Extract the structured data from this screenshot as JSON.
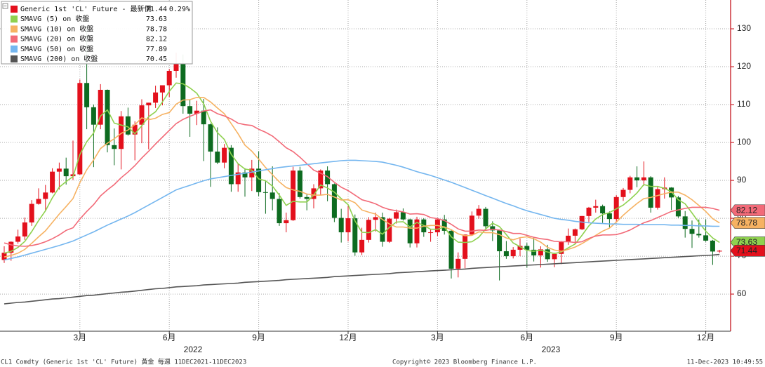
{
  "chart_data": {
    "type": "candlestick",
    "categories": [
      null,
      null,
      null,
      null,
      null,
      null,
      null,
      null,
      null,
      null,
      null,
      "3月",
      null,
      null,
      null,
      null,
      null,
      null,
      null,
      null,
      null,
      null,
      null,
      null,
      "6月",
      null,
      null,
      null,
      null,
      null,
      null,
      null,
      null,
      null,
      null,
      null,
      null,
      "9月",
      null,
      null,
      null,
      null,
      null,
      null,
      null,
      null,
      null,
      null,
      null,
      null,
      "12月",
      null,
      null,
      null,
      null,
      null,
      null,
      null,
      null,
      null,
      null,
      null,
      null,
      "3月",
      null,
      null,
      null,
      null,
      null,
      null,
      null,
      null,
      null,
      null,
      null,
      null,
      "6月",
      null,
      null,
      null,
      null,
      null,
      null,
      null,
      null,
      null,
      null,
      null,
      null,
      "9月",
      null,
      null,
      null,
      null,
      null,
      null,
      null,
      null,
      null,
      null,
      null,
      null,
      "12月",
      null,
      null
    ],
    "year_labels": [
      "2022",
      "2023"
    ],
    "candles": {
      "name": "Generic 1st 'CL' Future - 最新價",
      "up_color": "#e3101c",
      "down_color": "#0d6b20",
      "last": 71.44,
      "change_label": "0.29%",
      "tag": true,
      "open": [
        69.0,
        70.9,
        73.8,
        75.2,
        78.9,
        83.8,
        85.1,
        86.8,
        92.3,
        93.1,
        91.1,
        91.6,
        115.7,
        109.3,
        104.7,
        113.9,
        99.3,
        98.3,
        106.9,
        102.1,
        104.7,
        109.8,
        110.5,
        113.2,
        115.1,
        118.9,
        120.7,
        109.6,
        107.6,
        108.4,
        104.8,
        97.6,
        94.7,
        98.6,
        89.0,
        92.1,
        90.8,
        93.1,
        86.9,
        86.8,
        85.1,
        78.7,
        79.5,
        92.6,
        85.6,
        85.1,
        87.9,
        92.6,
        89.0,
        80.1,
        76.3,
        80.0,
        71.0,
        74.3,
        79.6,
        80.3,
        73.8,
        79.9,
        81.6,
        79.7,
        73.4,
        79.7,
        76.3,
        76.3,
        79.7,
        76.7,
        66.7,
        69.3,
        75.7,
        80.7,
        82.5,
        77.9,
        76.8,
        71.3,
        70.0,
        71.7,
        72.7,
        71.7,
        70.2,
        71.8,
        69.2,
        70.6,
        73.9,
        75.4,
        77.1,
        80.6,
        82.8,
        83.2,
        81.3,
        79.8,
        85.6,
        87.5,
        90.8,
        90.0,
        90.8,
        82.8,
        87.7,
        88.1,
        85.5,
        80.5,
        77.2,
        75.9,
        75.5,
        74.1,
        71.23
      ],
      "high": [
        72.6,
        73.9,
        77.0,
        80.2,
        84.8,
        87.9,
        88.8,
        93.2,
        94.7,
        96.0,
        100.5,
        116.6,
        130.5,
        110.0,
        115.4,
        114.0,
        103.7,
        108.3,
        109.2,
        105.6,
        111.4,
        110.5,
        115.0,
        115.1,
        119.4,
        123.7,
        123.2,
        111.3,
        111.0,
        111.5,
        105.0,
        104.0,
        99.6,
        99.3,
        94.4,
        93.2,
        95.4,
        97.7,
        90.0,
        93.7,
        86.6,
        81.5,
        93.6,
        93.6,
        86.5,
        89.0,
        92.9,
        93.7,
        89.2,
        82.5,
        83.3,
        81.0,
        77.5,
        80.3,
        81.5,
        81.5,
        80.1,
        82.3,
        82.6,
        79.9,
        80.4,
        80.0,
        77.1,
        80.1,
        80.9,
        77.1,
        71.0,
        75.7,
        81.8,
        83.5,
        83.0,
        79.2,
        76.9,
        74.0,
        72.4,
        74.7,
        73.5,
        75.1,
        72.6,
        73.0,
        70.9,
        74.0,
        77.3,
        77.3,
        80.6,
        83.0,
        84.9,
        83.6,
        81.8,
        86.1,
        88.0,
        91.2,
        93.7,
        95.0,
        91.1,
        88.3,
        90.8,
        88.2,
        85.9,
        81.9,
        79.4,
        79.7,
        79.7,
        74.3,
        71.66
      ],
      "low": [
        68.2,
        68.8,
        73.3,
        74.3,
        78.0,
        83.6,
        81.9,
        86.6,
        87.6,
        88.9,
        90.1,
        91.5,
        103.5,
        93.5,
        103.5,
        97.4,
        94.0,
        92.9,
        101.8,
        95.3,
        99.8,
        98.2,
        109.1,
        109.8,
        112.0,
        117.1,
        107.6,
        101.5,
        104.6,
        95.1,
        88.3,
        94.3,
        93.2,
        87.0,
        87.0,
        85.7,
        87.2,
        85.8,
        81.2,
        82.1,
        78.0,
        76.3,
        79.3,
        85.2,
        82.1,
        82.6,
        86.1,
        84.5,
        79.0,
        73.6,
        73.9,
        70.1,
        70.3,
        73.6,
        76.5,
        72.5,
        73.5,
        78.6,
        79.4,
        72.3,
        72.3,
        75.1,
        73.8,
        75.3,
        75.7,
        64.1,
        64.4,
        66.8,
        75.7,
        79.9,
        76.9,
        74.0,
        63.6,
        69.3,
        69.4,
        70.0,
        67.0,
        68.6,
        67.0,
        68.5,
        67.1,
        67.9,
        73.0,
        73.1,
        76.9,
        79.0,
        81.5,
        78.8,
        77.6,
        79.1,
        84.6,
        86.6,
        88.2,
        88.6,
        81.5,
        82.3,
        85.2,
        82.2,
        80.1,
        74.9,
        72.2,
        74.9,
        73.8,
        67.7,
        70.9
      ],
      "close": [
        70.9,
        73.8,
        75.2,
        78.9,
        83.8,
        85.1,
        86.8,
        92.3,
        93.1,
        91.1,
        91.6,
        115.7,
        109.3,
        104.7,
        113.9,
        99.3,
        98.3,
        106.9,
        102.1,
        104.7,
        109.8,
        110.5,
        113.2,
        115.1,
        118.9,
        120.7,
        109.6,
        107.6,
        108.4,
        104.8,
        97.6,
        94.7,
        98.6,
        89.0,
        92.1,
        90.8,
        93.1,
        86.9,
        86.8,
        85.1,
        78.7,
        79.5,
        92.6,
        85.6,
        85.1,
        87.9,
        92.6,
        89.0,
        80.1,
        76.3,
        80.0,
        71.0,
        74.3,
        79.6,
        80.3,
        73.8,
        79.9,
        81.6,
        79.7,
        73.4,
        79.7,
        76.3,
        76.3,
        79.7,
        76.7,
        66.7,
        69.3,
        75.7,
        80.7,
        82.5,
        77.9,
        76.8,
        71.3,
        70.0,
        71.7,
        72.7,
        71.7,
        70.2,
        71.8,
        69.2,
        70.6,
        73.9,
        75.4,
        77.1,
        80.6,
        82.8,
        83.2,
        81.3,
        79.8,
        85.6,
        87.5,
        90.8,
        90.0,
        90.8,
        82.8,
        87.7,
        88.1,
        85.5,
        80.5,
        77.2,
        75.9,
        75.5,
        74.1,
        71.23,
        71.44
      ]
    },
    "series": [
      {
        "name": "SMAVG (5)  on 收盤",
        "color": "#8fd14f",
        "last": 73.63,
        "tag": true,
        "values": [
          70.8,
          71.3,
          72.3,
          73.9,
          76.5,
          79.4,
          82.0,
          85.4,
          88.2,
          89.7,
          91.0,
          96.8,
          100.2,
          102.5,
          107.0,
          108.6,
          105.1,
          104.6,
          104.1,
          102.3,
          104.4,
          106.8,
          108.1,
          110.7,
          113.5,
          115.7,
          115.5,
          114.4,
          113.0,
          110.2,
          105.6,
          102.6,
          100.8,
          96.9,
          94.4,
          93.0,
          92.7,
          90.4,
          89.9,
          88.5,
          86.1,
          83.4,
          84.5,
          84.3,
          84.3,
          86.1,
          88.8,
          88.0,
          86.9,
          85.2,
          83.6,
          79.3,
          76.3,
          76.2,
          77.0,
          75.8,
          77.6,
          79.0,
          79.1,
          77.7,
          78.9,
          78.1,
          77.1,
          77.1,
          77.7,
          75.1,
          73.7,
          73.6,
          73.8,
          75.0,
          77.2,
          78.7,
          77.8,
          75.7,
          73.5,
          72.5,
          71.5,
          71.3,
          71.6,
          71.1,
          70.7,
          71.1,
          72.2,
          73.2,
          75.5,
          78.0,
          79.8,
          81.0,
          81.5,
          82.5,
          83.5,
          85.0,
          86.7,
          88.9,
          88.4,
          88.4,
          87.9,
          87.0,
          84.9,
          83.8,
          81.4,
          78.9,
          76.6,
          74.8,
          73.63
        ]
      },
      {
        "name": "SMAVG (10)  on 收盤",
        "color": "#f6b262",
        "last": 78.78,
        "tag": true,
        "values": [
          69.8,
          70.2,
          70.8,
          71.8,
          73.4,
          75.1,
          76.7,
          78.9,
          81.1,
          83.1,
          85.2,
          89.4,
          92.8,
          95.4,
          98.4,
          99.8,
          101.0,
          102.4,
          103.3,
          104.7,
          106.5,
          106.0,
          106.4,
          107.4,
          107.9,
          110.1,
          111.2,
          111.3,
          111.9,
          111.9,
          110.7,
          109.1,
          107.6,
          105.0,
          102.3,
          99.3,
          97.7,
          95.6,
          93.4,
          91.5,
          89.6,
          88.1,
          87.5,
          87.1,
          86.4,
          86.1,
          86.1,
          86.3,
          85.6,
          84.8,
          84.9,
          84.1,
          82.2,
          81.6,
          81.1,
          79.7,
          78.5,
          77.7,
          77.7,
          77.4,
          77.4,
          77.9,
          78.1,
          78.1,
          77.7,
          77.0,
          75.9,
          75.4,
          75.5,
          76.4,
          76.2,
          76.2,
          75.7,
          74.8,
          74.3,
          74.9,
          75.1,
          74.6,
          73.7,
          72.3,
          71.6,
          71.3,
          71.8,
          72.4,
          73.3,
          74.4,
          75.5,
          76.6,
          77.4,
          79.0,
          80.8,
          82.4,
          83.9,
          85.2,
          85.5,
          86.0,
          86.5,
          86.9,
          86.9,
          86.1,
          84.9,
          83.4,
          81.8,
          79.9,
          78.78
        ]
      },
      {
        "name": "SMAVG (20)  on 收盤",
        "color": "#f26a78",
        "last": 82.12,
        "tag": true,
        "values": [
          73.5,
          73.0,
          72.7,
          72.6,
          72.8,
          73.2,
          73.8,
          74.6,
          75.6,
          76.8,
          77.5,
          79.8,
          81.8,
          83.6,
          85.9,
          87.5,
          88.9,
          90.7,
          92.2,
          93.9,
          95.9,
          97.7,
          99.6,
          101.4,
          103.2,
          105.0,
          106.1,
          106.9,
          107.6,
          108.3,
          108.6,
          107.6,
          107.0,
          106.2,
          105.1,
          104.7,
          104.5,
          103.5,
          102.7,
          101.7,
          100.2,
          98.6,
          97.6,
          96.1,
          94.4,
          92.7,
          91.9,
          91.0,
          89.5,
          88.2,
          87.3,
          86.1,
          84.9,
          84.4,
          83.8,
          82.9,
          82.3,
          82.0,
          81.7,
          81.1,
          81.2,
          81.0,
          80.2,
          79.9,
          79.4,
          78.4,
          77.2,
          76.6,
          76.6,
          76.9,
          76.8,
          77.1,
          76.9,
          76.5,
          76.0,
          76.0,
          75.5,
          75.0,
          74.6,
          74.4,
          73.9,
          73.8,
          73.8,
          73.6,
          73.8,
          74.7,
          75.3,
          75.6,
          75.6,
          75.7,
          76.2,
          76.9,
          77.9,
          78.8,
          79.4,
          80.2,
          81.0,
          81.8,
          82.2,
          82.6,
          82.9,
          82.9,
          82.9,
          82.6,
          82.12
        ]
      },
      {
        "name": "SMAVG (50)  on 收盤",
        "color": "#74b6ef",
        "last": 77.89,
        "tag": false,
        "values": [
          69.0,
          69.4,
          69.8,
          70.3,
          70.8,
          71.3,
          71.8,
          72.3,
          72.8,
          73.4,
          74.0,
          74.8,
          75.6,
          76.4,
          77.3,
          78.2,
          79.0,
          79.8,
          80.6,
          81.5,
          82.5,
          83.5,
          84.5,
          85.5,
          86.5,
          87.5,
          88.1,
          88.7,
          89.3,
          89.9,
          90.4,
          90.7,
          91.0,
          91.3,
          91.6,
          91.9,
          92.2,
          92.5,
          92.8,
          93.1,
          93.4,
          93.6,
          93.8,
          94.0,
          94.2,
          94.4,
          94.6,
          94.8,
          95.0,
          95.2,
          95.3,
          95.3,
          95.2,
          95.1,
          95.0,
          94.8,
          94.4,
          94.0,
          93.5,
          92.9,
          92.3,
          91.8,
          91.3,
          90.7,
          90.1,
          89.5,
          88.8,
          88.1,
          87.4,
          86.7,
          86.0,
          85.3,
          84.6,
          83.9,
          83.3,
          82.6,
          82.0,
          81.5,
          81.0,
          80.5,
          80.0,
          79.7,
          79.5,
          79.2,
          79.0,
          78.8,
          78.7,
          78.6,
          78.5,
          78.5,
          78.4,
          78.4,
          78.4,
          78.3,
          78.3,
          78.3,
          78.3,
          78.2,
          78.2,
          78.1,
          78.1,
          78.0,
          78.0,
          77.9,
          77.89
        ]
      },
      {
        "name": "SMAVG (200)  on 收盤",
        "color": "#555555",
        "last": 70.45,
        "tag": false,
        "values": [
          57.4,
          57.6,
          57.8,
          57.9,
          58.1,
          58.3,
          58.5,
          58.7,
          58.8,
          59.0,
          59.2,
          59.4,
          59.6,
          59.7,
          59.9,
          60.1,
          60.3,
          60.5,
          60.6,
          60.8,
          61.0,
          61.2,
          61.4,
          61.5,
          61.7,
          61.9,
          62.0,
          62.1,
          62.2,
          62.4,
          62.5,
          62.6,
          62.7,
          62.8,
          62.9,
          63.1,
          63.2,
          63.3,
          63.4,
          63.5,
          63.6,
          63.8,
          63.9,
          64.0,
          64.1,
          64.2,
          64.3,
          64.4,
          64.6,
          64.7,
          64.8,
          64.9,
          65.0,
          65.1,
          65.2,
          65.3,
          65.4,
          65.6,
          65.7,
          65.8,
          65.9,
          66.0,
          66.1,
          66.2,
          66.3,
          66.4,
          66.5,
          66.6,
          66.8,
          66.9,
          67.0,
          67.1,
          67.2,
          67.3,
          67.4,
          67.5,
          67.6,
          67.7,
          67.8,
          67.9,
          68.0,
          68.1,
          68.2,
          68.3,
          68.4,
          68.5,
          68.6,
          68.7,
          68.8,
          68.9,
          69.0,
          69.1,
          69.2,
          69.3,
          69.4,
          69.5,
          69.6,
          69.7,
          69.8,
          69.9,
          70.0,
          70.1,
          70.2,
          70.3,
          70.45
        ]
      }
    ],
    "ylim": [
      50.2,
      137.6
    ],
    "yticks": [
      60,
      70,
      80,
      90,
      100,
      110,
      120,
      130
    ],
    "grid": true,
    "footer": {
      "left": "CL1 Comdty (Generic 1st 'CL' Future) 黃金  每週 11DEC2021-11DEC2023",
      "center": "Copyright© 2023 Bloomberg Finance L.P.",
      "right": "11-Dec-2023 10:49:55"
    }
  }
}
